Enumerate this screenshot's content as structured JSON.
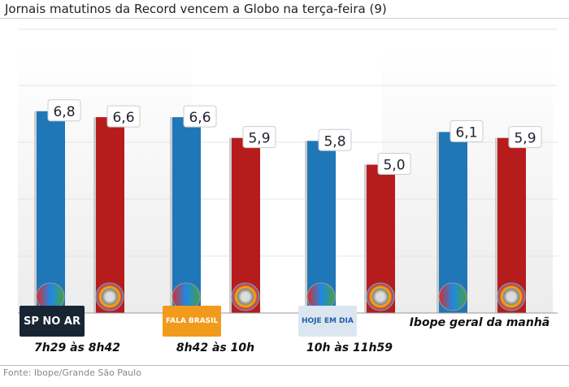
{
  "title": "Jornais matutinos da Record vencem a Globo na terça-feira (9)",
  "source": "Fonte: Ibope/Grande São Paulo",
  "program_logos": [
    "SP NO AR",
    "FALA BRASIL",
    "HOJE EM DIA"
  ],
  "chart_data": {
    "type": "bar",
    "title": "Jornais matutinos da Record vencem a Globo na terça-feira (9)",
    "categories": [
      "7h29 às 8h42",
      "8h42 às 10h",
      "10h às 11h59",
      "Ibope geral da manhã"
    ],
    "series": [
      {
        "values": [
          6.8,
          6.6,
          5.8,
          6.1
        ],
        "color": "#1f77b8",
        "logo": "record-logo"
      },
      {
        "values": [
          6.6,
          5.9,
          5.0,
          5.9
        ],
        "color": "#b71c1c",
        "logo": "globo-logo"
      }
    ],
    "value_labels": [
      [
        "6,8",
        "6,6",
        "5,8",
        "6,1"
      ],
      [
        "6,6",
        "5,9",
        "5,0",
        "5,9"
      ]
    ],
    "grid": true
  }
}
